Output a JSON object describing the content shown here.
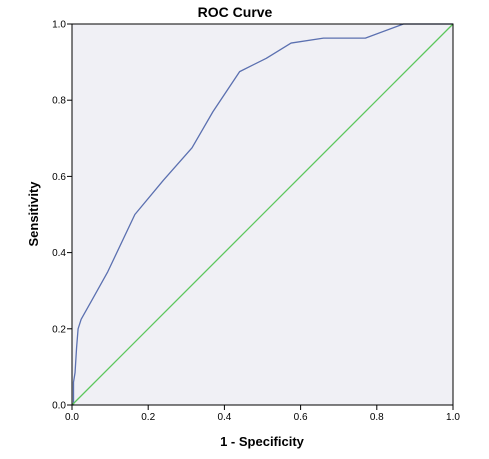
{
  "chart_data": {
    "type": "line",
    "title": "ROC Curve",
    "xlabel": "1 - Specificity",
    "ylabel": "Sensitivity",
    "xlim": [
      0.0,
      1.0
    ],
    "ylim": [
      0.0,
      1.0
    ],
    "x_ticks": [
      "0.0",
      "0.2",
      "0.4",
      "0.6",
      "0.8",
      "1.0"
    ],
    "y_ticks": [
      "0.0",
      "0.2",
      "0.4",
      "0.6",
      "0.8",
      "1.0"
    ],
    "grid": false,
    "legend": "none",
    "plot_background": "#f0f0f5",
    "series": [
      {
        "color": "#5b70b0",
        "x": [
          0.0,
          0.004,
          0.004,
          0.008,
          0.012,
          0.016,
          0.024,
          0.055,
          0.094,
          0.165,
          0.24,
          0.315,
          0.37,
          0.44,
          0.51,
          0.575,
          0.66,
          0.77,
          0.87,
          1.0
        ],
        "y": [
          0.0,
          0.0,
          0.06,
          0.085,
          0.15,
          0.2,
          0.225,
          0.28,
          0.35,
          0.5,
          0.59,
          0.675,
          0.77,
          0.875,
          0.91,
          0.95,
          0.963,
          0.963,
          1.0,
          1.0
        ]
      },
      {
        "color": "#5cc75c",
        "x": [
          0.0,
          1.0
        ],
        "y": [
          0.0,
          1.0
        ]
      }
    ]
  }
}
